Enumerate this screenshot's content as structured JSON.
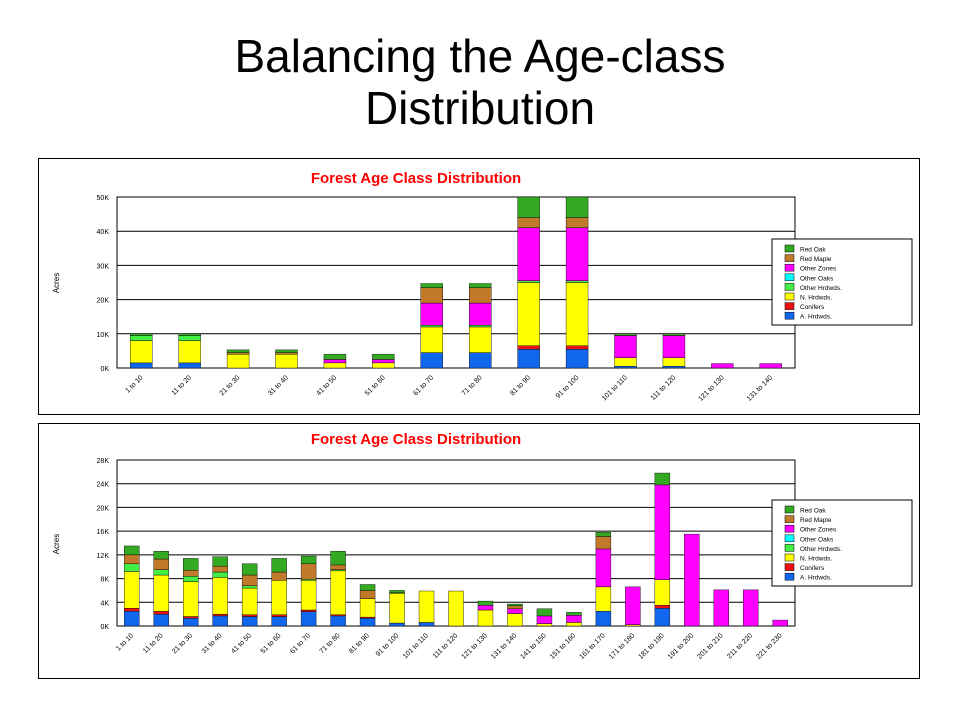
{
  "slide": {
    "title_line1": "Balancing the Age-class",
    "title_line2": "Distribution"
  },
  "legend_items": [
    {
      "label": "Red Oak",
      "color": "#33aa22"
    },
    {
      "label": "Red Maple",
      "color": "#c07a2a"
    },
    {
      "label": "Other Zones",
      "color": "#ff00ff"
    },
    {
      "label": "Other Oaks",
      "color": "#00ffff"
    },
    {
      "label": "Other Hrdwds.",
      "color": "#44ee44"
    },
    {
      "label": "N. Hrdwds.",
      "color": "#ffff00"
    },
    {
      "label": "Conifers",
      "color": "#ee1111"
    },
    {
      "label": "A. Hrdwds.",
      "color": "#1166ee"
    }
  ],
  "chart_data": [
    {
      "type": "bar",
      "stacked": true,
      "title": "Forest Age Class Distribution",
      "ylabel": "Acres",
      "xlabel": "",
      "ylim": [
        0,
        50000
      ],
      "yticks": [
        {
          "value": 0,
          "label": "0K"
        },
        {
          "value": 10000,
          "label": "10K"
        },
        {
          "value": 20000,
          "label": "20K"
        },
        {
          "value": 30000,
          "label": "30K"
        },
        {
          "value": 40000,
          "label": "40K"
        },
        {
          "value": 50000,
          "label": "50K"
        }
      ],
      "grid": true,
      "legend_position": "right",
      "categories": [
        "1 to 10",
        "11 to 20",
        "21 to 30",
        "31 to 40",
        "41 to 50",
        "51 to 60",
        "61 to 70",
        "71 to 80",
        "81 to 90",
        "91 to 100",
        "101 to 110",
        "111 to 120",
        "121 to 130",
        "131 to 140"
      ],
      "series": [
        {
          "name": "A. Hrdwds.",
          "values": [
            1500,
            1500,
            0,
            0,
            0,
            0,
            4500,
            4500,
            5500,
            5500,
            500,
            500,
            0,
            0
          ]
        },
        {
          "name": "Conifers",
          "values": [
            0,
            0,
            0,
            0,
            0,
            0,
            0,
            0,
            1000,
            1000,
            0,
            0,
            0,
            0
          ]
        },
        {
          "name": "N. Hrdwds.",
          "values": [
            6500,
            6500,
            4000,
            4000,
            1500,
            1500,
            7500,
            7500,
            18500,
            18500,
            2500,
            2500,
            0,
            0
          ]
        },
        {
          "name": "Other Hrdwds.",
          "values": [
            1500,
            1500,
            0,
            0,
            0,
            0,
            500,
            500,
            500,
            500,
            0,
            0,
            0,
            0
          ]
        },
        {
          "name": "Other Oaks",
          "values": [
            0,
            0,
            0,
            0,
            0,
            0,
            0,
            0,
            0,
            0,
            0,
            0,
            0,
            0
          ]
        },
        {
          "name": "Other Zones",
          "values": [
            0,
            0,
            0,
            0,
            1000,
            1000,
            6500,
            6500,
            15500,
            15500,
            6500,
            6500,
            1300,
            1300
          ]
        },
        {
          "name": "Red Maple",
          "values": [
            0,
            0,
            500,
            500,
            0,
            0,
            4500,
            4500,
            3000,
            3000,
            0,
            0,
            0,
            0
          ]
        },
        {
          "name": "Red Oak",
          "values": [
            500,
            500,
            800,
            800,
            1500,
            1500,
            1200,
            1200,
            6000,
            6000,
            500,
            500,
            0,
            0
          ]
        }
      ]
    },
    {
      "type": "bar",
      "stacked": true,
      "title": "Forest Age Class Distribution",
      "ylabel": "Acres",
      "xlabel": "",
      "ylim": [
        0,
        28000
      ],
      "yticks": [
        {
          "value": 0,
          "label": "0K"
        },
        {
          "value": 4000,
          "label": "4K"
        },
        {
          "value": 8000,
          "label": "8K"
        },
        {
          "value": 12000,
          "label": "12K"
        },
        {
          "value": 16000,
          "label": "16K"
        },
        {
          "value": 20000,
          "label": "20K"
        },
        {
          "value": 24000,
          "label": "24K"
        },
        {
          "value": 28000,
          "label": "28K"
        }
      ],
      "grid": true,
      "legend_position": "right",
      "categories": [
        "1 to 10",
        "11 to 20",
        "21 to 30",
        "31 to 40",
        "41 to 50",
        "51 to 60",
        "61 to 70",
        "71 to 80",
        "81 to 90",
        "91 to 100",
        "101 to 110",
        "111 to 120",
        "121 to 130",
        "131 to 140",
        "141 to 150",
        "151 to 160",
        "161 to 170",
        "171 to 180",
        "181 to 190",
        "191 to 200",
        "201 to 210",
        "211 to 220",
        "221 to 230"
      ],
      "series": [
        {
          "name": "A. Hrdwds.",
          "values": [
            2500,
            2000,
            1300,
            1700,
            1600,
            1600,
            2400,
            1700,
            1300,
            500,
            600,
            0,
            0,
            0,
            0,
            0,
            2500,
            0,
            3000,
            0,
            0,
            0,
            0
          ]
        },
        {
          "name": "Conifers",
          "values": [
            500,
            500,
            300,
            300,
            300,
            300,
            300,
            200,
            200,
            0,
            0,
            0,
            0,
            0,
            0,
            0,
            0,
            0,
            500,
            0,
            0,
            0,
            0
          ]
        },
        {
          "name": "N. Hrdwds.",
          "values": [
            6200,
            6100,
            5900,
            6200,
            4500,
            5800,
            5000,
            7400,
            3100,
            5000,
            5300,
            5900,
            2700,
            2100,
            400,
            600,
            4100,
            200,
            4300,
            0,
            0,
            0,
            0
          ]
        },
        {
          "name": "Other Hrdwds.",
          "values": [
            1300,
            900,
            900,
            900,
            400,
            0,
            200,
            200,
            0,
            100,
            0,
            0,
            0,
            0,
            0,
            0,
            0,
            0,
            0,
            0,
            0,
            0,
            0
          ]
        },
        {
          "name": "Other Oaks",
          "values": [
            0,
            0,
            0,
            0,
            0,
            0,
            0,
            0,
            0,
            0,
            0,
            0,
            0,
            0,
            0,
            0,
            0,
            0,
            0,
            0,
            0,
            0,
            0
          ]
        },
        {
          "name": "Other Zones",
          "values": [
            0,
            0,
            0,
            0,
            0,
            0,
            0,
            0,
            0,
            0,
            0,
            0,
            800,
            800,
            1300,
            1200,
            6400,
            6400,
            16000,
            15500,
            6100,
            6100,
            1000
          ]
        },
        {
          "name": "Red Maple",
          "values": [
            1500,
            1800,
            1000,
            1000,
            1800,
            1400,
            2600,
            800,
            1400,
            0,
            0,
            0,
            0,
            500,
            0,
            0,
            2100,
            0,
            0,
            0,
            0,
            0,
            0
          ]
        },
        {
          "name": "Red Oak",
          "values": [
            1500,
            1300,
            2000,
            1600,
            1900,
            2300,
            1300,
            2300,
            1000,
            400,
            0,
            0,
            700,
            300,
            1200,
            500,
            700,
            0,
            2000,
            0,
            0,
            0,
            0
          ]
        }
      ]
    }
  ]
}
